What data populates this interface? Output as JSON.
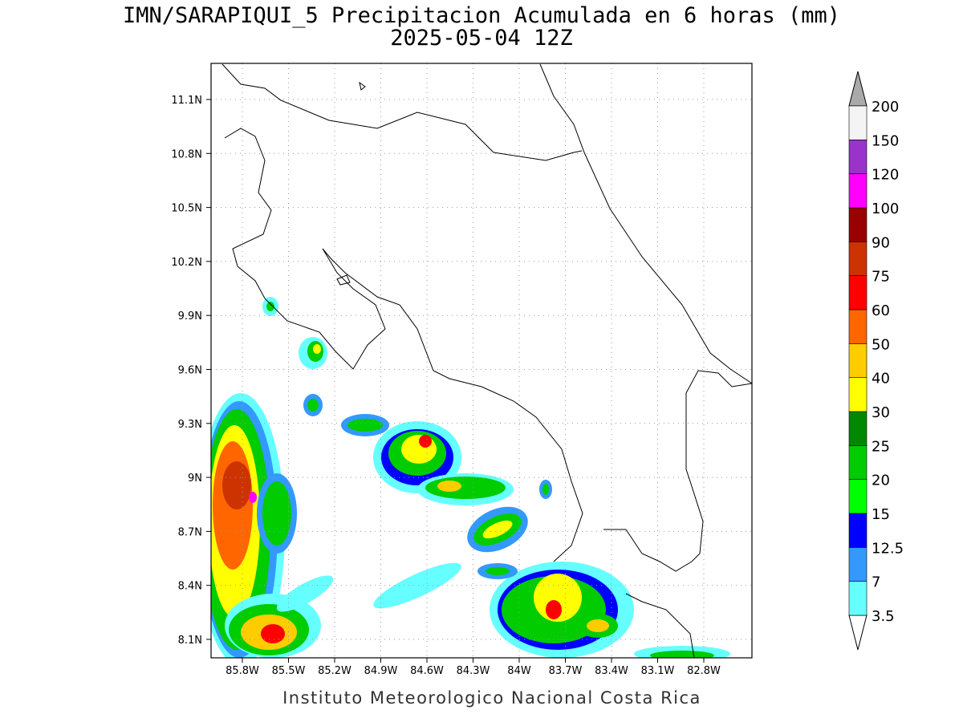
{
  "header": {
    "title": "IMN/SARAPIQUI_5 Precipitacion Acumulada en 6 horas (mm)",
    "subtitle": "2025-05-04 12Z"
  },
  "map": {
    "lat_labels": [
      "11.1N",
      "10.8N",
      "10.5N",
      "10.2N",
      "9.9N",
      "9.6N",
      "9.3N",
      "9N",
      "8.7N",
      "8.4N",
      "8.1N"
    ],
    "lon_labels": [
      "85.8W",
      "85.5W",
      "85.2W",
      "84.9W",
      "84.6W",
      "84.3W",
      "84W",
      "83.7W",
      "83.4W",
      "83.1W",
      "82.8W"
    ]
  },
  "colorbar": {
    "labels": [
      "3.5",
      "7",
      "12.5",
      "15",
      "20",
      "25",
      "30",
      "40",
      "50",
      "60",
      "75",
      "90",
      "100",
      "120",
      "150",
      "200"
    ],
    "colors": [
      "#66ffff",
      "#3399ff",
      "#0000ff",
      "#00ff00",
      "#00cc00",
      "#008800",
      "#ffff00",
      "#ffcc00",
      "#ff6600",
      "#ff0000",
      "#cc3300",
      "#990000",
      "#ff00ff",
      "#9933cc",
      "#f4f4f4"
    ]
  },
  "footer": "Instituto Meteorologico Nacional Costa Rica"
}
